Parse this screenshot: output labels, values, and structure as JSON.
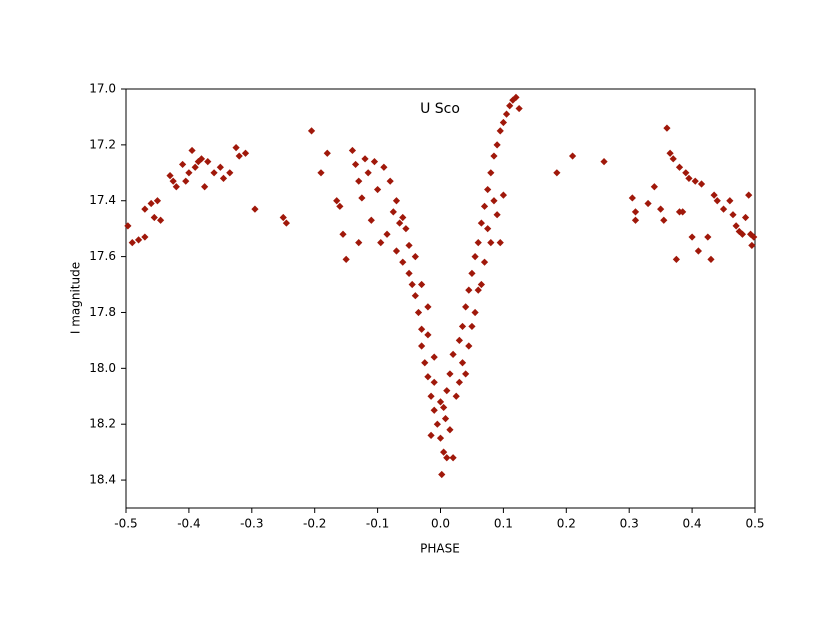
{
  "chart_data": {
    "type": "scatter",
    "title": "U Sco",
    "xlabel": "PHASE",
    "ylabel": "I magnitude",
    "color": "#a0180a",
    "y_inverted": true,
    "grid": false,
    "xlim": [
      -0.5,
      0.5
    ],
    "ylim": [
      17.0,
      18.5
    ],
    "xticks": [
      -0.5,
      -0.4,
      -0.3,
      -0.2,
      -0.1,
      {
        "value": 0,
        "label": "0.0"
      },
      0.1,
      0.2,
      0.3,
      0.4,
      0.5
    ],
    "yticks": [
      {
        "value": 17,
        "label": "17.0"
      },
      17.2,
      17.4,
      17.6,
      17.8,
      {
        "value": 18,
        "label": "18.0"
      },
      18.2,
      18.4
    ],
    "x": [
      -0.497,
      -0.49,
      -0.48,
      -0.47,
      -0.47,
      -0.46,
      -0.455,
      -0.45,
      -0.445,
      -0.43,
      -0.425,
      -0.42,
      -0.41,
      -0.405,
      -0.4,
      -0.395,
      -0.39,
      -0.385,
      -0.38,
      -0.375,
      -0.37,
      -0.36,
      -0.35,
      -0.345,
      -0.335,
      -0.325,
      -0.32,
      -0.31,
      -0.295,
      -0.25,
      -0.245,
      -0.205,
      -0.19,
      -0.18,
      -0.165,
      -0.16,
      -0.155,
      -0.15,
      -0.14,
      -0.135,
      -0.13,
      -0.13,
      -0.125,
      -0.12,
      -0.115,
      -0.11,
      -0.105,
      -0.1,
      -0.095,
      -0.09,
      -0.085,
      -0.08,
      -0.075,
      -0.07,
      -0.065,
      -0.06,
      -0.055,
      -0.05,
      -0.045,
      -0.04,
      -0.035,
      -0.03,
      -0.03,
      -0.025,
      -0.02,
      -0.02,
      -0.015,
      -0.01,
      -0.01,
      -0.005,
      0,
      0,
      0.002,
      0.005,
      0.008,
      0.01,
      0.015,
      0.015,
      0.02,
      0.02,
      0.025,
      0.03,
      0.03,
      0.035,
      0.04,
      0.04,
      0.045,
      0.05,
      0.05,
      0.055,
      0.06,
      0.06,
      0.065,
      0.07,
      0.07,
      0.075,
      0.08,
      0.08,
      0.085,
      0.09,
      0.09,
      0.095,
      0.1,
      0.1,
      0.105,
      0.11,
      0.115,
      0.12,
      0.125,
      0.095,
      0.085,
      0.075,
      0.065,
      0.055,
      0.045,
      0.035,
      -0.04,
      -0.05,
      -0.06,
      -0.07,
      -0.03,
      -0.02,
      -0.01,
      0.01,
      -0.015,
      0.005,
      0.185,
      0.21,
      0.26,
      0.305,
      0.31,
      0.31,
      0.33,
      0.34,
      0.35,
      0.355,
      0.36,
      0.365,
      0.37,
      0.375,
      0.38,
      0.38,
      0.385,
      0.39,
      0.395,
      0.4,
      0.405,
      0.41,
      0.415,
      0.425,
      0.43,
      0.435,
      0.44,
      0.45,
      0.46,
      0.465,
      0.47,
      0.475,
      0.48,
      0.485,
      0.49,
      0.493,
      0.495,
      0.498
    ],
    "y": [
      17.49,
      17.55,
      17.54,
      17.53,
      17.43,
      17.41,
      17.46,
      17.4,
      17.47,
      17.31,
      17.33,
      17.35,
      17.27,
      17.33,
      17.3,
      17.22,
      17.28,
      17.26,
      17.25,
      17.35,
      17.26,
      17.3,
      17.28,
      17.32,
      17.3,
      17.21,
      17.24,
      17.23,
      17.43,
      17.46,
      17.48,
      17.15,
      17.3,
      17.23,
      17.4,
      17.42,
      17.52,
      17.61,
      17.22,
      17.27,
      17.33,
      17.55,
      17.39,
      17.25,
      17.3,
      17.47,
      17.26,
      17.36,
      17.55,
      17.28,
      17.52,
      17.33,
      17.44,
      17.58,
      17.48,
      17.62,
      17.5,
      17.66,
      17.7,
      17.74,
      17.8,
      17.86,
      17.92,
      17.98,
      18.03,
      17.88,
      18.1,
      18.15,
      18.05,
      18.2,
      18.25,
      18.12,
      18.38,
      18.3,
      18.18,
      18.08,
      18.22,
      18.02,
      18.32,
      17.95,
      18.1,
      17.9,
      18.05,
      17.85,
      17.78,
      18.02,
      17.72,
      17.66,
      17.85,
      17.6,
      17.55,
      17.72,
      17.48,
      17.42,
      17.62,
      17.36,
      17.3,
      17.55,
      17.24,
      17.2,
      17.45,
      17.15,
      17.12,
      17.38,
      17.09,
      17.06,
      17.04,
      17.03,
      17.07,
      17.55,
      17.4,
      17.5,
      17.7,
      17.8,
      17.92,
      17.98,
      17.6,
      17.56,
      17.46,
      17.4,
      17.7,
      17.78,
      17.96,
      18.32,
      18.24,
      18.14,
      17.3,
      17.24,
      17.26,
      17.39,
      17.44,
      17.47,
      17.41,
      17.35,
      17.43,
      17.47,
      17.14,
      17.23,
      17.25,
      17.61,
      17.28,
      17.44,
      17.44,
      17.3,
      17.32,
      17.53,
      17.33,
      17.58,
      17.34,
      17.53,
      17.61,
      17.38,
      17.4,
      17.43,
      17.4,
      17.45,
      17.49,
      17.51,
      17.52,
      17.46,
      17.38,
      17.52,
      17.56,
      17.53
    ]
  }
}
